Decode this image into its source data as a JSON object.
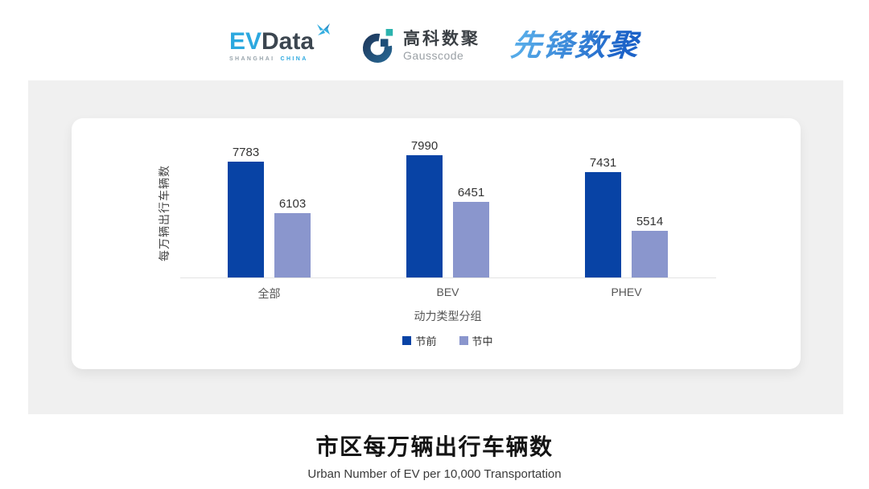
{
  "header": {
    "evdata": {
      "ev": "EV",
      "data": "Data",
      "sub_left": "SHANGHAI",
      "sub_right": "CHINA"
    },
    "gausscode": {
      "cn": "高科数聚",
      "en": "Gausscode"
    },
    "xianfeng": {
      "text": "先锋数聚"
    }
  },
  "chart_data": {
    "type": "bar",
    "categories": [
      "全部",
      "BEV",
      "PHEV"
    ],
    "series": [
      {
        "name": "节前",
        "color": "#0843A5",
        "values": [
          7783,
          7990,
          7431
        ]
      },
      {
        "name": "节中",
        "color": "#8A96CD",
        "values": [
          6103,
          6451,
          5514
        ]
      }
    ],
    "xlabel": "动力类型分组",
    "ylabel": "每万辆出行车辆数",
    "ylim": [
      4000,
      8400
    ],
    "grid": false,
    "legend_position": "bottom",
    "value_labels": true
  },
  "footer": {
    "title": "市区每万辆出行车辆数",
    "subtitle": "Urban Number of EV per 10,000 Transportation"
  },
  "colors": {
    "panel_bg": "#F0F0F0",
    "card_bg": "#FFFFFF",
    "axis_line": "#E3E3E3",
    "evdata_blue": "#2CA8DF",
    "evdata_dark": "#3C4650",
    "gausscode_navy": "#1D4E78",
    "gausscode_teal": "#2CB3AE",
    "xianfeng_gradient_start": "#55AAE8",
    "xianfeng_gradient_end": "#1D63C8"
  }
}
